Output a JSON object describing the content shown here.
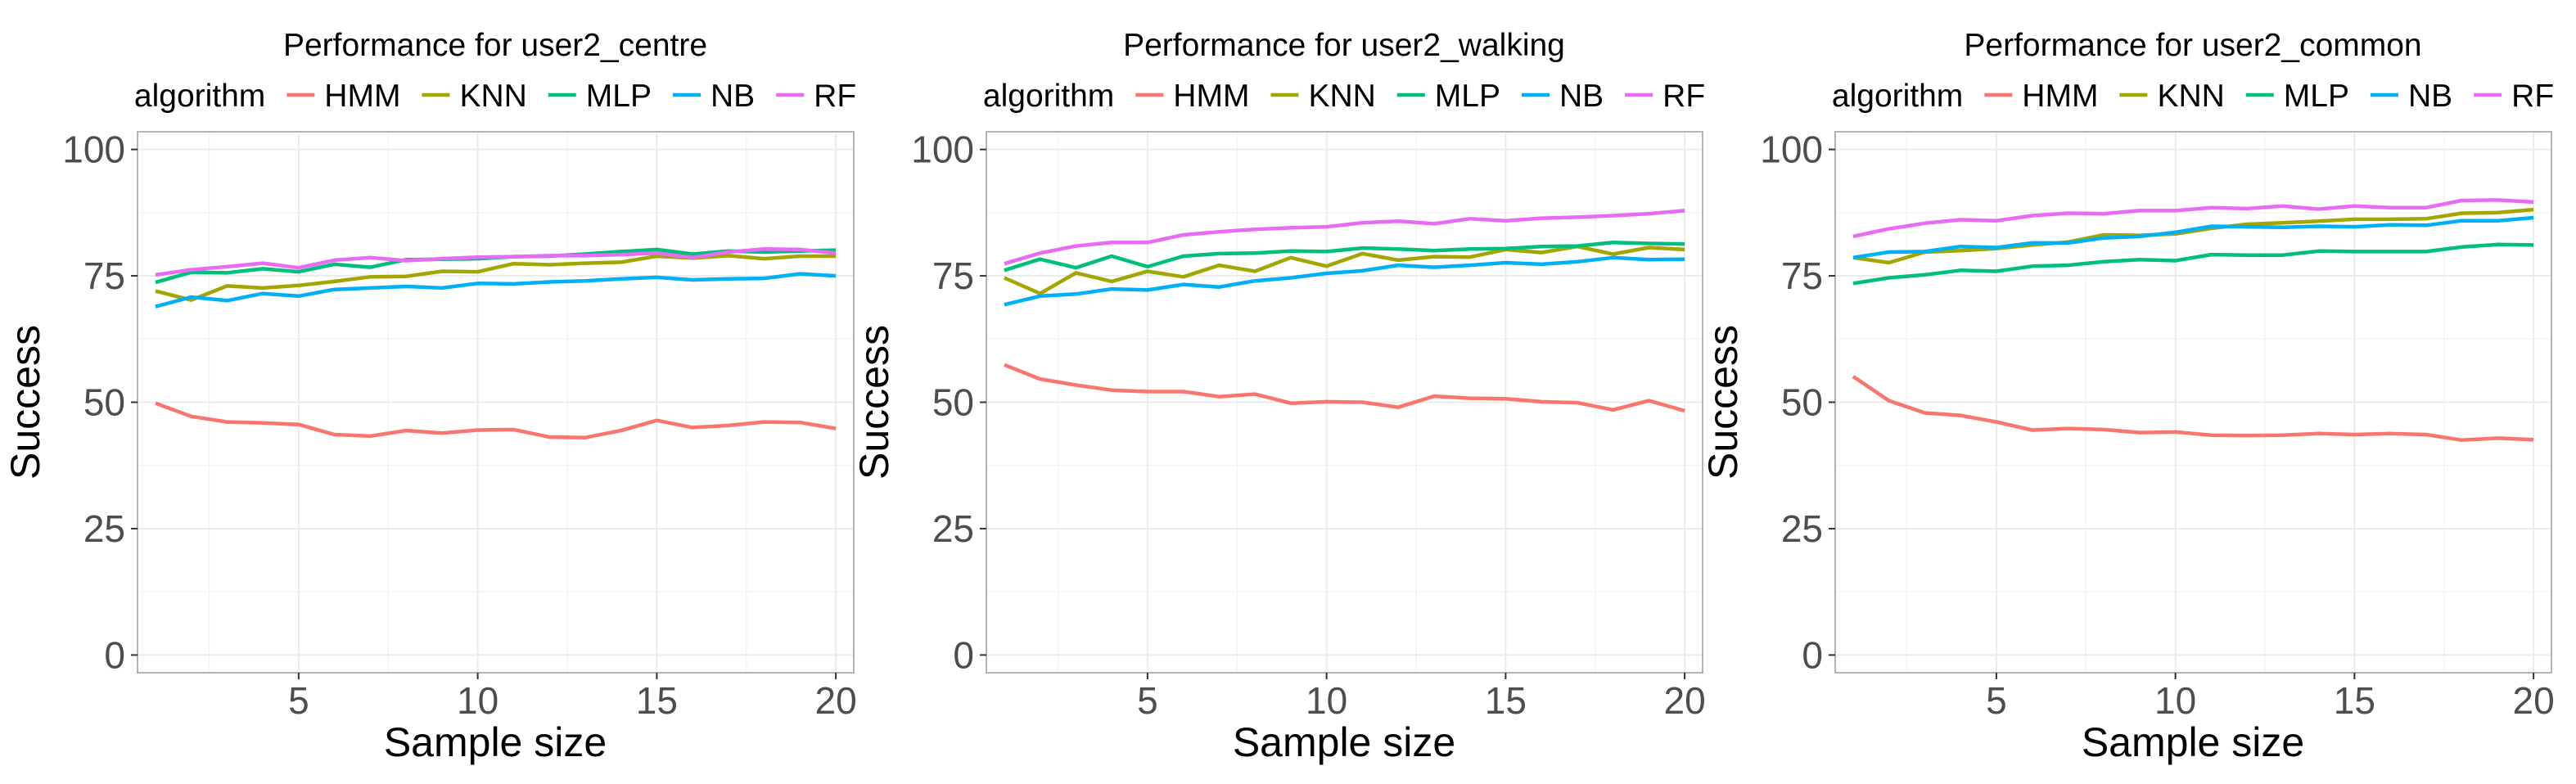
{
  "chart_data": [
    {
      "type": "line",
      "title": "Performance for user2_centre",
      "xlabel": "Sample size",
      "ylabel": "Success",
      "legend_title": "algorithm",
      "legend_position": "top",
      "xlim": [
        0.5,
        20.5
      ],
      "ylim": [
        -3.5,
        103.5
      ],
      "xticks": [
        5,
        10,
        15,
        20
      ],
      "yticks": [
        0,
        25,
        50,
        75,
        100
      ],
      "grid": true,
      "x": [
        1,
        2,
        3,
        4,
        5,
        6,
        7,
        8,
        9,
        10,
        11,
        12,
        13,
        14,
        15,
        16,
        17,
        18,
        19,
        20
      ],
      "series": [
        {
          "name": "HMM",
          "color": "#F8766D",
          "values": [
            49.8,
            47.2,
            46.1,
            45.9,
            45.6,
            43.6,
            43.3,
            44.4,
            43.9,
            44.5,
            44.6,
            43.1,
            43.0,
            44.4,
            46.4,
            45.0,
            45.4,
            46.1,
            46.0,
            44.8
          ]
        },
        {
          "name": "KNN",
          "color": "#A3A500",
          "values": [
            72.0,
            70.2,
            73.0,
            72.6,
            73.1,
            73.9,
            74.8,
            74.9,
            75.9,
            75.8,
            77.4,
            77.2,
            77.5,
            77.7,
            78.9,
            78.5,
            79.0,
            78.4,
            78.9,
            78.9
          ]
        },
        {
          "name": "MLP",
          "color": "#00BF7D",
          "values": [
            73.7,
            75.7,
            75.6,
            76.4,
            75.8,
            77.3,
            76.7,
            78.2,
            78.3,
            78.4,
            78.8,
            78.9,
            79.3,
            79.8,
            80.2,
            79.3,
            79.9,
            79.7,
            79.9,
            80.1
          ]
        },
        {
          "name": "NB",
          "color": "#00B0F6",
          "values": [
            68.9,
            70.8,
            70.1,
            71.5,
            71.0,
            72.3,
            72.6,
            72.9,
            72.6,
            73.5,
            73.4,
            73.8,
            74.0,
            74.4,
            74.7,
            74.2,
            74.4,
            74.5,
            75.4,
            75.0
          ]
        },
        {
          "name": "RF",
          "color": "#E76BF3",
          "values": [
            75.2,
            76.2,
            76.8,
            77.5,
            76.6,
            78.1,
            78.6,
            78.0,
            78.4,
            78.7,
            78.8,
            79.0,
            79.0,
            79.2,
            79.5,
            78.6,
            79.7,
            80.3,
            80.2,
            79.5
          ]
        }
      ]
    },
    {
      "type": "line",
      "title": "Performance for user2_walking",
      "xlabel": "Sample size",
      "ylabel": "Success",
      "legend_title": "algorithm",
      "legend_position": "top",
      "xlim": [
        0.5,
        20.5
      ],
      "ylim": [
        -3.5,
        103.5
      ],
      "xticks": [
        5,
        10,
        15,
        20
      ],
      "yticks": [
        0,
        25,
        50,
        75,
        100
      ],
      "grid": true,
      "x": [
        1,
        2,
        3,
        4,
        5,
        6,
        7,
        8,
        9,
        10,
        11,
        12,
        13,
        14,
        15,
        16,
        17,
        18,
        19,
        20
      ],
      "series": [
        {
          "name": "HMM",
          "color": "#F8766D",
          "values": [
            57.4,
            54.6,
            53.4,
            52.4,
            52.1,
            52.1,
            51.1,
            51.6,
            49.8,
            50.1,
            50.0,
            49.0,
            51.2,
            50.8,
            50.7,
            50.1,
            49.9,
            48.5,
            50.3,
            48.3
          ]
        },
        {
          "name": "KNN",
          "color": "#A3A500",
          "values": [
            74.6,
            71.5,
            75.6,
            73.9,
            75.9,
            74.8,
            77.1,
            75.9,
            78.6,
            76.9,
            79.4,
            78.1,
            78.8,
            78.7,
            80.2,
            79.6,
            80.8,
            79.3,
            80.6,
            80.2
          ]
        },
        {
          "name": "MLP",
          "color": "#00BF7D",
          "values": [
            76.1,
            78.3,
            76.6,
            78.9,
            76.8,
            78.9,
            79.4,
            79.5,
            79.9,
            79.8,
            80.5,
            80.3,
            80.0,
            80.3,
            80.4,
            80.8,
            80.9,
            81.6,
            81.4,
            81.3
          ]
        },
        {
          "name": "NB",
          "color": "#00B0F6",
          "values": [
            69.3,
            71.0,
            71.4,
            72.4,
            72.2,
            73.3,
            72.8,
            74.0,
            74.6,
            75.5,
            76.0,
            77.1,
            76.7,
            77.1,
            77.6,
            77.3,
            77.8,
            78.6,
            78.2,
            78.3
          ]
        },
        {
          "name": "RF",
          "color": "#E76BF3",
          "values": [
            77.4,
            79.5,
            80.9,
            81.6,
            81.6,
            83.1,
            83.7,
            84.2,
            84.5,
            84.7,
            85.5,
            85.8,
            85.3,
            86.3,
            85.9,
            86.4,
            86.6,
            86.9,
            87.3,
            87.9
          ]
        }
      ]
    },
    {
      "type": "line",
      "title": "Performance for user2_common",
      "xlabel": "Sample size",
      "ylabel": "Success",
      "legend_title": "algorithm",
      "legend_position": "top",
      "xlim": [
        0.5,
        20.5
      ],
      "ylim": [
        -3.5,
        103.5
      ],
      "xticks": [
        5,
        10,
        15,
        20
      ],
      "yticks": [
        0,
        25,
        50,
        75,
        100
      ],
      "grid": true,
      "x": [
        1,
        2,
        3,
        4,
        5,
        6,
        7,
        8,
        9,
        10,
        11,
        12,
        13,
        14,
        15,
        16,
        17,
        18,
        19,
        20
      ],
      "series": [
        {
          "name": "HMM",
          "color": "#F8766D",
          "values": [
            55.1,
            50.3,
            47.9,
            47.4,
            46.1,
            44.5,
            44.8,
            44.6,
            44.0,
            44.1,
            43.5,
            43.4,
            43.5,
            43.8,
            43.6,
            43.8,
            43.6,
            42.5,
            42.9,
            42.6
          ]
        },
        {
          "name": "KNN",
          "color": "#A3A500",
          "values": [
            78.6,
            77.6,
            79.7,
            80.0,
            80.4,
            81.1,
            81.7,
            83.1,
            83.0,
            83.3,
            84.4,
            85.2,
            85.5,
            85.8,
            86.2,
            86.2,
            86.3,
            87.4,
            87.5,
            88.1
          ]
        },
        {
          "name": "MLP",
          "color": "#00BF7D",
          "values": [
            73.5,
            74.6,
            75.2,
            76.1,
            75.9,
            76.9,
            77.1,
            77.8,
            78.2,
            78.0,
            79.2,
            79.1,
            79.1,
            79.9,
            79.8,
            79.8,
            79.8,
            80.7,
            81.2,
            81.1
          ]
        },
        {
          "name": "NB",
          "color": "#00B0F6",
          "values": [
            78.6,
            79.7,
            79.8,
            80.8,
            80.6,
            81.5,
            81.5,
            82.5,
            82.8,
            83.6,
            84.8,
            84.7,
            84.6,
            84.8,
            84.7,
            85.1,
            85.0,
            85.9,
            85.9,
            86.5
          ]
        },
        {
          "name": "RF",
          "color": "#E76BF3",
          "values": [
            82.8,
            84.3,
            85.4,
            86.1,
            85.9,
            86.9,
            87.4,
            87.3,
            87.9,
            87.9,
            88.5,
            88.3,
            88.8,
            88.2,
            88.8,
            88.5,
            88.5,
            89.9,
            90.0,
            89.6
          ]
        }
      ]
    }
  ]
}
